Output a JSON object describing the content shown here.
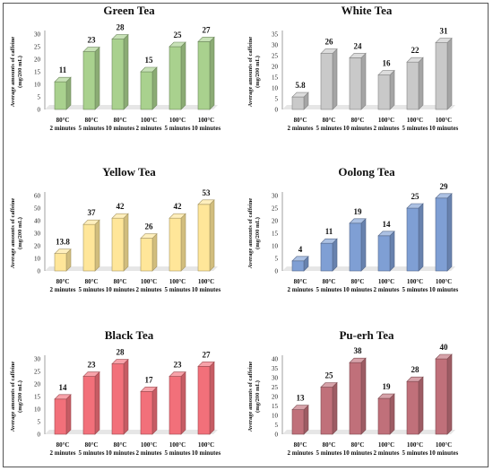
{
  "chart_data": [
    {
      "type": "bar",
      "title": "Green Tea",
      "ylabel": "Average amounts of caffeine (mg/200 mL)",
      "xlabel": "",
      "categories": [
        "80°C 2 minutes",
        "80°C 5 minutes",
        "80°C 10 minutes",
        "100°C 2 minutes",
        "100°C 5 minutes",
        "100°C 10 minutes"
      ],
      "values": [
        11,
        23,
        28,
        15,
        25,
        27
      ],
      "yticks": [
        0,
        5,
        10,
        15,
        20,
        25,
        30
      ],
      "ylim": [
        0,
        30
      ],
      "color": "#a9d18e",
      "grid": false
    },
    {
      "type": "bar",
      "title": "White Tea",
      "ylabel": "Average amounts of caffeine (mg/200 mL)",
      "xlabel": "",
      "categories": [
        "80°C 2 minutes",
        "80°C 5 minutes",
        "80°C 10 minutes",
        "100°C 2 minutes",
        "100°C 5 minutes",
        "100°C 10 minutes"
      ],
      "values": [
        5.8,
        26,
        24,
        16,
        22,
        31
      ],
      "yticks": [
        0,
        5,
        10,
        15,
        20,
        25,
        30,
        35
      ],
      "ylim": [
        0,
        35
      ],
      "color": "#c9c9c9",
      "grid": false
    },
    {
      "type": "bar",
      "title": "Yellow Tea",
      "ylabel": "Average amounts of caffeine (mg/200 mL)",
      "xlabel": "",
      "categories": [
        "80°C 2 minutes",
        "80°C 5 minutes",
        "80°C 10 minutes",
        "100°C 2 minutes",
        "100°C 5 minutes",
        "100°C 10 minutes"
      ],
      "values": [
        13.8,
        37,
        42,
        26,
        42,
        53
      ],
      "yticks": [
        0,
        10,
        20,
        30,
        40,
        50,
        60
      ],
      "ylim": [
        0,
        60
      ],
      "color": "#ffe699",
      "grid": false
    },
    {
      "type": "bar",
      "title": "Oolong Tea",
      "ylabel": "Average amounts of caffeine (mg/200 mL)",
      "xlabel": "",
      "categories": [
        "80°C 2 minutes",
        "80°C 5 minutes",
        "80°C 10 minutes",
        "100°C 2 minutes",
        "100°C 5 minutes",
        "100°C 10 minutes"
      ],
      "values": [
        4,
        11,
        19,
        14,
        25,
        29
      ],
      "yticks": [
        0,
        5,
        10,
        15,
        20,
        25,
        30
      ],
      "ylim": [
        0,
        30
      ],
      "color": "#7f9fd4",
      "grid": false
    },
    {
      "type": "bar",
      "title": "Black Tea",
      "ylabel": "Average amounts of caffeine (mg/200 mL)",
      "xlabel": "",
      "categories": [
        "80°C 2 minutes",
        "80°C 5 minutes",
        "80°C 10 minutes",
        "100°C 2 minutes",
        "100°C 5 minutes",
        "100°C 10 minutes"
      ],
      "values": [
        14,
        23,
        28,
        17,
        23,
        27
      ],
      "yticks": [
        0,
        5,
        10,
        15,
        20,
        25,
        30
      ],
      "ylim": [
        0,
        30
      ],
      "color": "#f2707a",
      "grid": false
    },
    {
      "type": "bar",
      "title": "Pu-erh Tea",
      "ylabel": "Average amounts of caffeine (mg/200 mL)",
      "xlabel": "",
      "categories": [
        "80°C 2 minutes",
        "80°C 5 minutes",
        "80°C 10 minutes",
        "100°C 2 minutes",
        "100°C 5 minutes",
        "100°C 10 minutes"
      ],
      "values": [
        13,
        25,
        38,
        19,
        28,
        40
      ],
      "yticks": [
        0,
        5,
        10,
        15,
        20,
        25,
        30,
        35,
        40
      ],
      "ylim": [
        0,
        40
      ],
      "color": "#c0707a",
      "grid": false
    }
  ]
}
